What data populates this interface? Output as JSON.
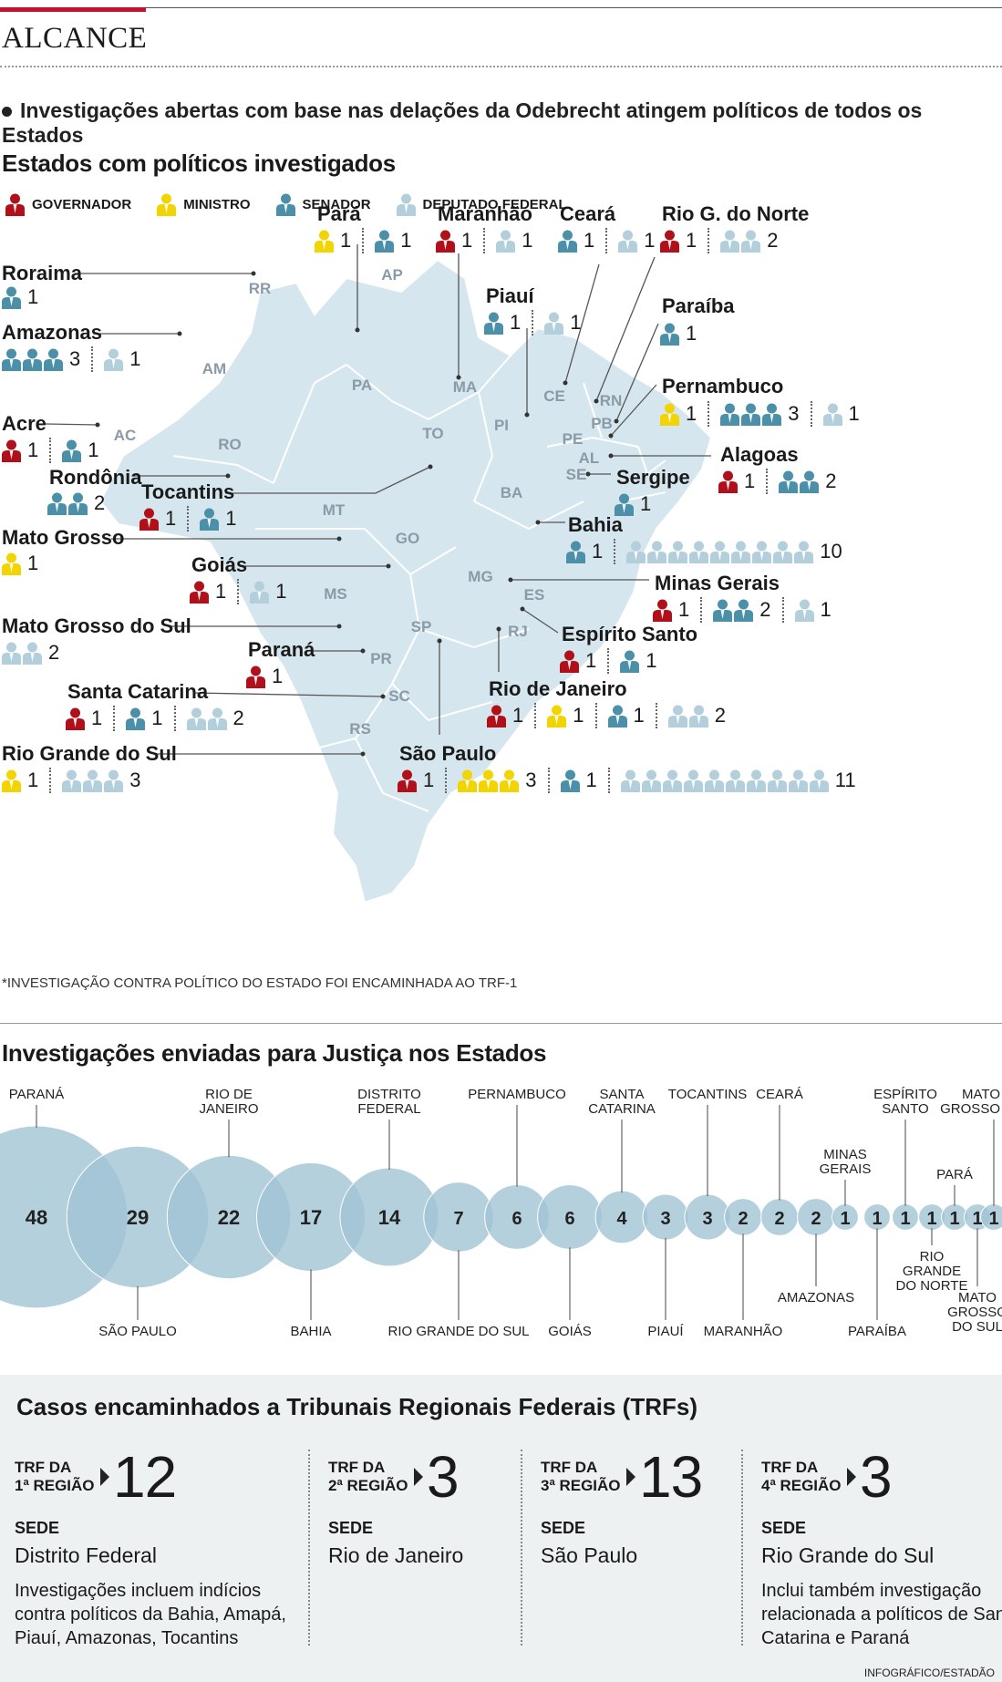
{
  "kicker": "ALCANCE",
  "intro": "Investigações abertas com base nas delações da Odebrecht atingem políticos de todos os Estados",
  "map_title": "Estados com políticos investigados",
  "legend": [
    {
      "key": "gov",
      "label": "GOVERNADOR",
      "color": "#b01019"
    },
    {
      "key": "min",
      "label": "MINISTRO",
      "color": "#f2d500"
    },
    {
      "key": "sen",
      "label": "SENADOR",
      "color": "#4b8fa8"
    },
    {
      "key": "dep",
      "label": "DEPUTADO FEDERAL",
      "color": "#b3cfdc"
    }
  ],
  "map_abbr": [
    "RR",
    "AP",
    "AM",
    "PA",
    "MA",
    "CE",
    "RN",
    "PB",
    "PE",
    "AL",
    "SE",
    "PI",
    "TO",
    "AC",
    "RO",
    "BA",
    "MT",
    "GO",
    "MG",
    "ES",
    "MS",
    "SP",
    "RJ",
    "PR",
    "SC",
    "RS"
  ],
  "states": [
    {
      "name": "Pará",
      "counts": [
        {
          "role": "min",
          "n": 1
        },
        {
          "role": "sen",
          "n": 1
        }
      ]
    },
    {
      "name": "Maranhão",
      "counts": [
        {
          "role": "gov",
          "n": 1
        },
        {
          "role": "dep",
          "n": 1
        }
      ]
    },
    {
      "name": "Ceará",
      "counts": [
        {
          "role": "sen",
          "n": 1
        },
        {
          "role": "dep",
          "n": 1
        }
      ]
    },
    {
      "name": "Rio G. do Norte",
      "counts": [
        {
          "role": "gov",
          "n": 1
        },
        {
          "role": "dep",
          "n": 2
        }
      ]
    },
    {
      "name": "Roraima",
      "counts": [
        {
          "role": "sen",
          "n": 1
        }
      ]
    },
    {
      "name": "Piauí",
      "counts": [
        {
          "role": "sen",
          "n": 1
        },
        {
          "role": "dep",
          "n": 1
        }
      ]
    },
    {
      "name": "Amazonas",
      "counts": [
        {
          "role": "sen",
          "n": 3
        },
        {
          "role": "dep",
          "n": 1
        }
      ]
    },
    {
      "name": "Paraíba",
      "counts": [
        {
          "role": "sen",
          "n": 1
        }
      ]
    },
    {
      "name": "Pernambuco",
      "counts": [
        {
          "role": "min",
          "n": 1
        },
        {
          "role": "sen",
          "n": 3
        },
        {
          "role": "dep",
          "n": 1
        }
      ]
    },
    {
      "name": "Acre",
      "counts": [
        {
          "role": "gov",
          "n": 1
        },
        {
          "role": "sen",
          "n": 1
        }
      ]
    },
    {
      "name": "Alagoas",
      "counts": [
        {
          "role": "gov",
          "n": 1
        },
        {
          "role": "sen",
          "n": 2
        }
      ]
    },
    {
      "name": "Rondônia",
      "counts": [
        {
          "role": "sen",
          "n": 2
        }
      ]
    },
    {
      "name": "Sergipe",
      "counts": [
        {
          "role": "sen",
          "n": 1
        }
      ]
    },
    {
      "name": "Tocantins",
      "counts": [
        {
          "role": "gov",
          "n": 1
        },
        {
          "role": "sen",
          "n": 1
        }
      ]
    },
    {
      "name": "Bahia",
      "counts": [
        {
          "role": "sen",
          "n": 1
        },
        {
          "role": "dep",
          "n": 10
        }
      ]
    },
    {
      "name": "Mato Grosso",
      "counts": [
        {
          "role": "min",
          "n": 1
        }
      ]
    },
    {
      "name": "Goiás",
      "counts": [
        {
          "role": "gov",
          "n": 1
        },
        {
          "role": "dep",
          "n": 1
        }
      ]
    },
    {
      "name": "Minas Gerais",
      "counts": [
        {
          "role": "gov",
          "n": 1
        },
        {
          "role": "sen",
          "n": 2
        },
        {
          "role": "dep",
          "n": 1
        }
      ]
    },
    {
      "name": "Mato Grosso do Sul",
      "counts": [
        {
          "role": "dep",
          "n": 2
        }
      ]
    },
    {
      "name": "Espírito Santo",
      "counts": [
        {
          "role": "gov",
          "n": 1
        },
        {
          "role": "sen",
          "n": 1
        }
      ]
    },
    {
      "name": "Paraná",
      "counts": [
        {
          "role": "gov",
          "n": 1
        }
      ]
    },
    {
      "name": "Rio de Janeiro",
      "counts": [
        {
          "role": "gov",
          "n": 1
        },
        {
          "role": "min",
          "n": 1
        },
        {
          "role": "sen",
          "n": 1
        },
        {
          "role": "dep",
          "n": 2
        }
      ]
    },
    {
      "name": "Santa Catarina",
      "counts": [
        {
          "role": "gov",
          "n": 1
        },
        {
          "role": "sen",
          "n": 1
        },
        {
          "role": "dep",
          "n": 2
        }
      ]
    },
    {
      "name": "Rio Grande do Sul",
      "counts": [
        {
          "role": "min",
          "n": 1
        },
        {
          "role": "dep",
          "n": 3
        }
      ]
    },
    {
      "name": "São Paulo",
      "counts": [
        {
          "role": "gov",
          "n": 1
        },
        {
          "role": "min",
          "n": 3
        },
        {
          "role": "sen",
          "n": 1
        },
        {
          "role": "dep",
          "n": 11
        }
      ]
    }
  ],
  "note": "*INVESTIGAÇÃO CONTRA POLÍTICO DO ESTADO FOI ENCAMINHADA AO TRF-1",
  "chart_data": {
    "type": "bubble",
    "title": "Investigações enviadas para Justiça nos Estados",
    "categories": [
      "PARANÁ",
      "SÃO PAULO",
      "RIO DE JANEIRO",
      "BAHIA",
      "DISTRITO FEDERAL",
      "RIO GRANDE DO SUL",
      "PERNAMBUCO",
      "GOIÁS",
      "SANTA CATARINA",
      "PIAUÍ",
      "TOCANTINS",
      "MARANHÃO",
      "CEARÁ",
      "AMAZONAS",
      "MINAS GERAIS",
      "PARAÍBA",
      "ESPÍRITO SANTO",
      "RIO GRANDE DO NORTE",
      "PARÁ",
      "MATO GROSSO DO SUL",
      "MATO GROSSO"
    ],
    "values": [
      48,
      29,
      22,
      17,
      14,
      7,
      6,
      6,
      4,
      3,
      3,
      2,
      2,
      2,
      1,
      1,
      1,
      1,
      1,
      1,
      1
    ],
    "label_side": [
      "top",
      "bottom",
      "top",
      "bottom",
      "top",
      "bottom",
      "top",
      "bottom",
      "top",
      "bottom",
      "top",
      "bottom",
      "top",
      "bottom",
      "top",
      "bottom",
      "top",
      "bottom",
      "top",
      "bottom",
      "top"
    ]
  },
  "trf": {
    "title": "Casos encaminhados a Tribunais Regionais Federais (TRFs)",
    "sede_label": "SEDE",
    "items": [
      {
        "line1": "TRF DA",
        "line2": "1ª REGIÃO",
        "value": "12",
        "city": "Distrito Federal",
        "desc": "Investigações incluem indícios contra políticos da Bahia, Amapá, Piauí, Amazonas, Tocantins"
      },
      {
        "line1": "TRF DA",
        "line2": "2ª REGIÃO",
        "value": "3",
        "city": "Rio de Janeiro",
        "desc": ""
      },
      {
        "line1": "TRF DA",
        "line2": "3ª REGIÃO",
        "value": "13",
        "city": "São Paulo",
        "desc": ""
      },
      {
        "line1": "TRF DA",
        "line2": "4ª REGIÃO",
        "value": "3",
        "city": "Rio Grande do Sul",
        "desc": "Inclui também investigação relacionada a políticos de Santa Catarina e Paraná"
      }
    ]
  },
  "credit": "INFOGRÁFICO/ESTADÃO"
}
